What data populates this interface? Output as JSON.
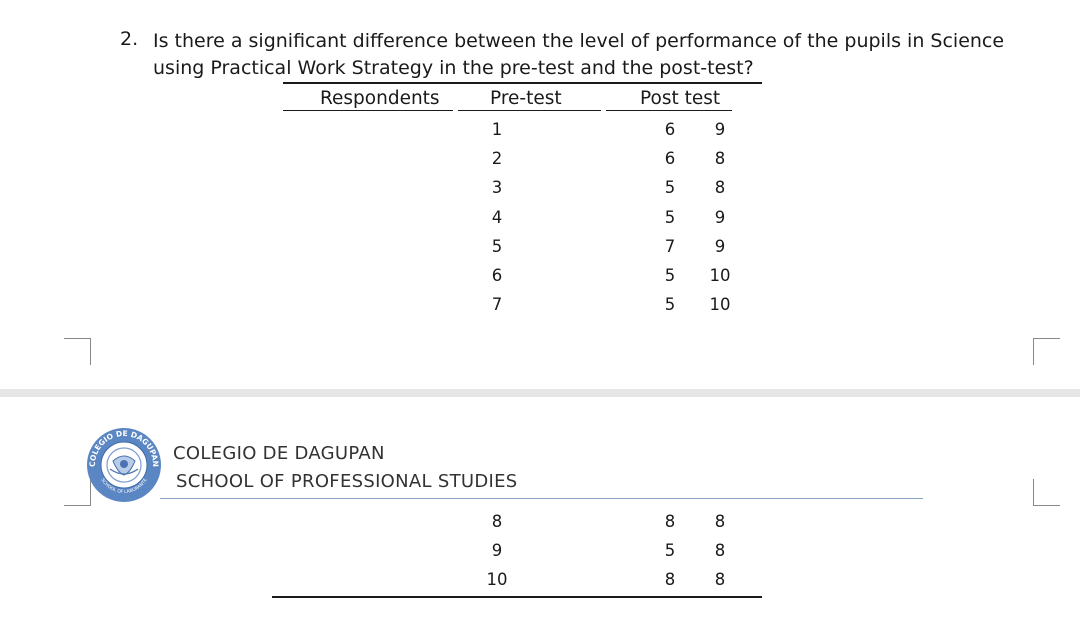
{
  "question": {
    "number": "2.",
    "line1": "Is there a significant difference between the level of performance of the pupils in Science",
    "line2": "using Practical Work Strategy in the pre-test and the post-test?"
  },
  "table": {
    "headers": [
      "Respondents",
      "Pre-test",
      "Post test"
    ],
    "rows_top": [
      {
        "respondent": "1",
        "pre": "6",
        "post": "9"
      },
      {
        "respondent": "2",
        "pre": "6",
        "post": "8"
      },
      {
        "respondent": "3",
        "pre": "5",
        "post": "8"
      },
      {
        "respondent": "4",
        "pre": "5",
        "post": "9"
      },
      {
        "respondent": "5",
        "pre": "7",
        "post": "9"
      },
      {
        "respondent": "6",
        "pre": "5",
        "post": "10"
      },
      {
        "respondent": "7",
        "pre": "5",
        "post": "10"
      }
    ],
    "rows_bottom": [
      {
        "respondent": "8",
        "pre": "8",
        "post": "8"
      },
      {
        "respondent": "9",
        "pre": "5",
        "post": "8"
      },
      {
        "respondent": "10",
        "pre": "8",
        "post": "8"
      }
    ]
  },
  "header": {
    "school_name": "COLEGIO DE DAGUPAN",
    "school_dept": "SCHOOL OF PROFESSIONAL STUDIES",
    "logo_ring_text_top": "COLEGIO DE DAGUPAN",
    "logo_ring_text_bottom": "SCHOOL OF LABORANTE",
    "logo_color": "#5b86c4"
  }
}
